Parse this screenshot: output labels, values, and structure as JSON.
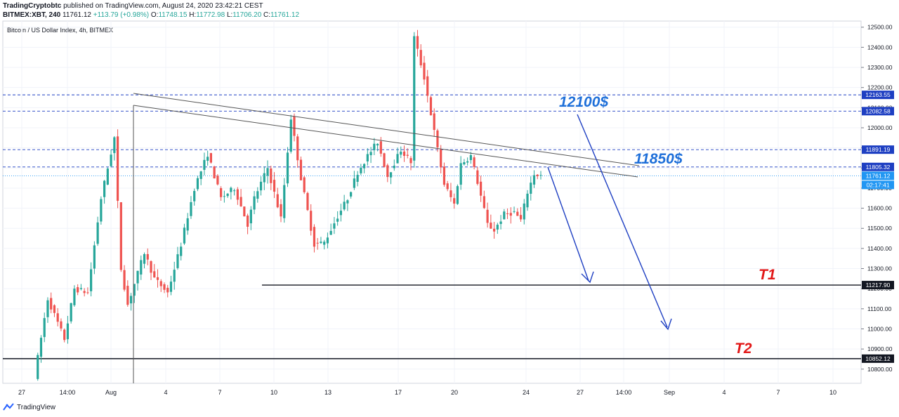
{
  "header": {
    "author": "TradingCryptobtc",
    "published": "published on TradingView.com, August 24, 2020 23:42:21 CEST",
    "symbol": "BITMEX:XBT, 240",
    "last": "11761.12",
    "change": "+113.79 (+0.98%)",
    "o_label": "O:",
    "o_value": "11748.15",
    "h_label": "H:",
    "h_value": "11772.98",
    "l_label": "L:",
    "l_value": "11706.20",
    "c_label": "C:",
    "c_value": "11761.12"
  },
  "footer": {
    "brand": "TradingView"
  },
  "colors": {
    "up": "#26a69a",
    "down": "#ef5350",
    "annot_blue": "#1e6fd9",
    "annot_red": "#e21818",
    "level_dark": "#131722",
    "level_blue": "#1e3fc2"
  },
  "chart_data": {
    "type": "candlestick",
    "title": "Bitcoin / US Dollar Index, 4h, BITMEX",
    "y_range": [
      10740,
      12520
    ],
    "y_ticks": [
      10800,
      10900,
      11000,
      11100,
      11200,
      11300,
      11400,
      11500,
      11600,
      11700,
      11800,
      11900,
      12000,
      12100,
      12200,
      12300,
      12400,
      12500
    ],
    "y_tick_labels": [
      "10800.00",
      "10900.00",
      "11000.00",
      "11100.00",
      "11200.00",
      "11300.00",
      "11400.00",
      "11500.00",
      "11600.00",
      "11700.00",
      "11800.00",
      "11900.00",
      "12000.00",
      "12100.00",
      "12200.00",
      "12300.00",
      "12400.00",
      "12500.00"
    ],
    "x_ticks": [
      "27",
      "14:00",
      "Aug",
      "4",
      "7",
      "10",
      "13",
      "17",
      "20",
      "24",
      "27",
      "14:00",
      "Sep",
      "4",
      "7",
      "10"
    ],
    "current_price": 11761.12,
    "current_price_label": "11761.12",
    "countdown_label": "02:17:41",
    "price_levels": [
      {
        "price": 12163.55,
        "label": "12163.55",
        "style": "dashed"
      },
      {
        "price": 12082.58,
        "label": "12082.58",
        "style": "dashed"
      },
      {
        "price": 11891.19,
        "label": "11891.19",
        "style": "dashed"
      },
      {
        "price": 11805.32,
        "label": "11805.32",
        "style": "dashed"
      },
      {
        "price": 11217.9,
        "label": "11217.90",
        "style": "solid"
      },
      {
        "price": 10852.12,
        "label": "10852.12",
        "style": "solid"
      }
    ],
    "annotations": [
      {
        "text": "12100$",
        "color": "blue"
      },
      {
        "text": "11850$",
        "color": "blue"
      },
      {
        "text": "T1",
        "color": "red"
      },
      {
        "text": "T2",
        "color": "red"
      }
    ],
    "anchors": [
      {
        "i": 0,
        "p": 10760
      },
      {
        "i": 4,
        "p": 11150
      },
      {
        "i": 9,
        "p": 10950
      },
      {
        "i": 12,
        "p": 11200
      },
      {
        "i": 16,
        "p": 11180
      },
      {
        "i": 20,
        "p": 11650
      },
      {
        "i": 24,
        "p": 11950
      },
      {
        "i": 26,
        "p": 11300
      },
      {
        "i": 28,
        "p": 11120
      },
      {
        "i": 33,
        "p": 11380
      },
      {
        "i": 36,
        "p": 11250
      },
      {
        "i": 40,
        "p": 11180
      },
      {
        "i": 44,
        "p": 11420
      },
      {
        "i": 48,
        "p": 11700
      },
      {
        "i": 52,
        "p": 11870
      },
      {
        "i": 56,
        "p": 11650
      },
      {
        "i": 60,
        "p": 11700
      },
      {
        "i": 64,
        "p": 11520
      },
      {
        "i": 66,
        "p": 11650
      },
      {
        "i": 70,
        "p": 11800
      },
      {
        "i": 74,
        "p": 11550
      },
      {
        "i": 77,
        "p": 12050
      },
      {
        "i": 80,
        "p": 11750
      },
      {
        "i": 84,
        "p": 11420
      },
      {
        "i": 87,
        "p": 11430
      },
      {
        "i": 91,
        "p": 11560
      },
      {
        "i": 94,
        "p": 11650
      },
      {
        "i": 97,
        "p": 11780
      },
      {
        "i": 100,
        "p": 11860
      },
      {
        "i": 103,
        "p": 11930
      },
      {
        "i": 106,
        "p": 11760
      },
      {
        "i": 110,
        "p": 11890
      },
      {
        "i": 113,
        "p": 11830
      },
      {
        "i": 114,
        "p": 12450
      },
      {
        "i": 117,
        "p": 12250
      },
      {
        "i": 120,
        "p": 11980
      },
      {
        "i": 123,
        "p": 11720
      },
      {
        "i": 126,
        "p": 11620
      },
      {
        "i": 128,
        "p": 11820
      },
      {
        "i": 131,
        "p": 11860
      },
      {
        "i": 133,
        "p": 11730
      },
      {
        "i": 136,
        "p": 11520
      },
      {
        "i": 138,
        "p": 11490
      },
      {
        "i": 141,
        "p": 11570
      },
      {
        "i": 144,
        "p": 11580
      },
      {
        "i": 146,
        "p": 11540
      },
      {
        "i": 148,
        "p": 11680
      },
      {
        "i": 150,
        "p": 11770
      },
      {
        "i": 152,
        "p": 11761
      }
    ]
  }
}
